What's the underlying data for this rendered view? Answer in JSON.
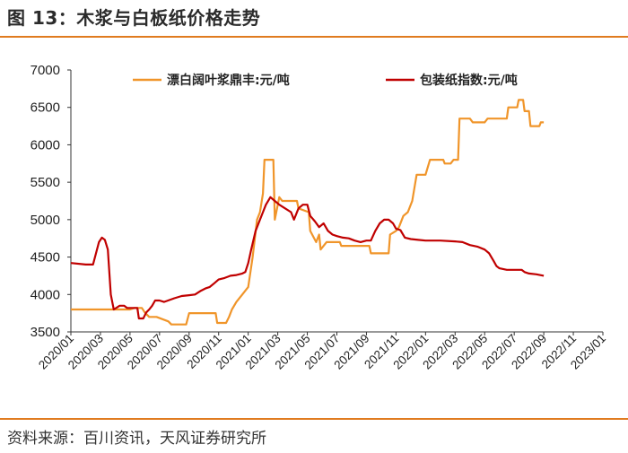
{
  "header": {
    "title": "图 13：木浆与白板纸价格走势"
  },
  "footer": {
    "source": "资料来源：百川资讯，天风证券研究所"
  },
  "chart_data": {
    "type": "line",
    "x_ticks": [
      "2020/01",
      "2020/03",
      "2020/05",
      "2020/07",
      "2020/09",
      "2020/11",
      "2021/01",
      "2021/03",
      "2021/05",
      "2021/07",
      "2021/09",
      "2021/11",
      "2022/01",
      "2022/03",
      "2022/05",
      "2022/07",
      "2022/09",
      "2022/11",
      "2023/01"
    ],
    "ylim": [
      3500,
      7000
    ],
    "y_ticks": [
      3500,
      4000,
      4500,
      5000,
      5500,
      6000,
      6500,
      7000
    ],
    "legend_position": "top",
    "series": [
      {
        "name": "漂白阔叶浆鼎丰:元/吨",
        "color": "#f0952a",
        "points": [
          [
            0.0,
            3800
          ],
          [
            4.0,
            3800
          ],
          [
            4.3,
            3820
          ],
          [
            4.8,
            3820
          ],
          [
            5.0,
            3760
          ],
          [
            5.3,
            3700
          ],
          [
            5.8,
            3700
          ],
          [
            6.6,
            3640
          ],
          [
            6.8,
            3600
          ],
          [
            7.8,
            3600
          ],
          [
            8.0,
            3750
          ],
          [
            9.8,
            3750
          ],
          [
            9.9,
            3620
          ],
          [
            10.5,
            3620
          ],
          [
            10.7,
            3700
          ],
          [
            10.9,
            3800
          ],
          [
            11.2,
            3900
          ],
          [
            11.6,
            4000
          ],
          [
            12.0,
            4100
          ],
          [
            12.3,
            4500
          ],
          [
            12.6,
            5000
          ],
          [
            12.8,
            5100
          ],
          [
            13.0,
            5350
          ],
          [
            13.1,
            5800
          ],
          [
            13.7,
            5800
          ],
          [
            13.8,
            5000
          ],
          [
            14.1,
            5300
          ],
          [
            14.3,
            5250
          ],
          [
            15.3,
            5250
          ],
          [
            15.4,
            5150
          ],
          [
            16.1,
            5100
          ],
          [
            16.2,
            4850
          ],
          [
            16.6,
            4700
          ],
          [
            16.8,
            4800
          ],
          [
            16.9,
            4600
          ],
          [
            17.1,
            4650
          ],
          [
            17.3,
            4700
          ],
          [
            17.6,
            4700
          ],
          [
            18.2,
            4700
          ],
          [
            18.3,
            4650
          ],
          [
            19.4,
            4650
          ],
          [
            20.2,
            4650
          ],
          [
            20.3,
            4550
          ],
          [
            21.0,
            4550
          ],
          [
            21.5,
            4550
          ],
          [
            21.6,
            4800
          ],
          [
            22.0,
            4850
          ],
          [
            22.2,
            4900
          ],
          [
            22.5,
            5050
          ],
          [
            22.8,
            5100
          ],
          [
            23.1,
            5250
          ],
          [
            23.4,
            5600
          ],
          [
            24.0,
            5600
          ],
          [
            24.3,
            5800
          ],
          [
            25.2,
            5800
          ],
          [
            25.3,
            5750
          ],
          [
            25.7,
            5750
          ],
          [
            25.9,
            5800
          ],
          [
            26.2,
            5800
          ],
          [
            26.3,
            6350
          ],
          [
            27.0,
            6350
          ],
          [
            27.2,
            6300
          ],
          [
            28.0,
            6300
          ],
          [
            28.2,
            6350
          ],
          [
            29.5,
            6350
          ],
          [
            29.6,
            6500
          ],
          [
            30.2,
            6500
          ],
          [
            30.3,
            6600
          ],
          [
            30.6,
            6600
          ],
          [
            30.7,
            6450
          ],
          [
            31.0,
            6450
          ],
          [
            31.1,
            6250
          ],
          [
            31.7,
            6250
          ],
          [
            31.8,
            6300
          ],
          [
            32.0,
            6300
          ]
        ]
      },
      {
        "name": "包装纸指数:元/吨",
        "color": "#c00000",
        "points": [
          [
            0.0,
            4420
          ],
          [
            1.0,
            4400
          ],
          [
            1.2,
            4400
          ],
          [
            1.5,
            4400
          ],
          [
            1.7,
            4550
          ],
          [
            1.9,
            4700
          ],
          [
            2.1,
            4760
          ],
          [
            2.3,
            4730
          ],
          [
            2.5,
            4600
          ],
          [
            2.7,
            4000
          ],
          [
            2.9,
            3800
          ],
          [
            3.3,
            3850
          ],
          [
            3.6,
            3850
          ],
          [
            3.8,
            3820
          ],
          [
            4.5,
            3820
          ],
          [
            4.6,
            3680
          ],
          [
            4.9,
            3680
          ],
          [
            5.1,
            3760
          ],
          [
            5.3,
            3800
          ],
          [
            5.5,
            3850
          ],
          [
            5.7,
            3920
          ],
          [
            6.0,
            3920
          ],
          [
            6.3,
            3900
          ],
          [
            7.0,
            3950
          ],
          [
            7.5,
            3980
          ],
          [
            8.0,
            3990
          ],
          [
            8.4,
            4000
          ],
          [
            8.8,
            4050
          ],
          [
            9.1,
            4080
          ],
          [
            9.4,
            4100
          ],
          [
            9.7,
            4150
          ],
          [
            10.0,
            4200
          ],
          [
            10.4,
            4220
          ],
          [
            10.8,
            4250
          ],
          [
            11.2,
            4260
          ],
          [
            11.6,
            4280
          ],
          [
            11.8,
            4300
          ],
          [
            12.0,
            4420
          ],
          [
            12.2,
            4600
          ],
          [
            12.5,
            4850
          ],
          [
            12.8,
            5000
          ],
          [
            13.0,
            5100
          ],
          [
            13.2,
            5200
          ],
          [
            13.5,
            5300
          ],
          [
            13.8,
            5250
          ],
          [
            14.1,
            5200
          ],
          [
            14.5,
            5150
          ],
          [
            14.9,
            5100
          ],
          [
            15.1,
            5000
          ],
          [
            15.4,
            5150
          ],
          [
            15.7,
            5200
          ],
          [
            16.0,
            5200
          ],
          [
            16.2,
            5050
          ],
          [
            16.5,
            4980
          ],
          [
            16.8,
            4900
          ],
          [
            17.1,
            4950
          ],
          [
            17.4,
            4850
          ],
          [
            17.7,
            4800
          ],
          [
            18.0,
            4780
          ],
          [
            18.4,
            4760
          ],
          [
            18.8,
            4750
          ],
          [
            19.2,
            4720
          ],
          [
            19.6,
            4700
          ],
          [
            20.0,
            4720
          ],
          [
            20.3,
            4720
          ],
          [
            20.6,
            4850
          ],
          [
            20.9,
            4950
          ],
          [
            21.2,
            5000
          ],
          [
            21.5,
            5000
          ],
          [
            21.8,
            4950
          ],
          [
            22.0,
            4880
          ],
          [
            22.3,
            4860
          ],
          [
            22.6,
            4760
          ],
          [
            23.0,
            4740
          ],
          [
            23.5,
            4730
          ],
          [
            24.0,
            4720
          ],
          [
            25.0,
            4720
          ],
          [
            26.0,
            4710
          ],
          [
            26.5,
            4700
          ],
          [
            27.0,
            4660
          ],
          [
            27.5,
            4640
          ],
          [
            28.0,
            4600
          ],
          [
            28.3,
            4550
          ],
          [
            28.6,
            4450
          ],
          [
            28.8,
            4380
          ],
          [
            29.0,
            4350
          ],
          [
            29.5,
            4330
          ],
          [
            30.0,
            4330
          ],
          [
            30.5,
            4330
          ],
          [
            30.7,
            4300
          ],
          [
            31.0,
            4280
          ],
          [
            31.5,
            4270
          ],
          [
            32.0,
            4250
          ]
        ]
      }
    ]
  }
}
